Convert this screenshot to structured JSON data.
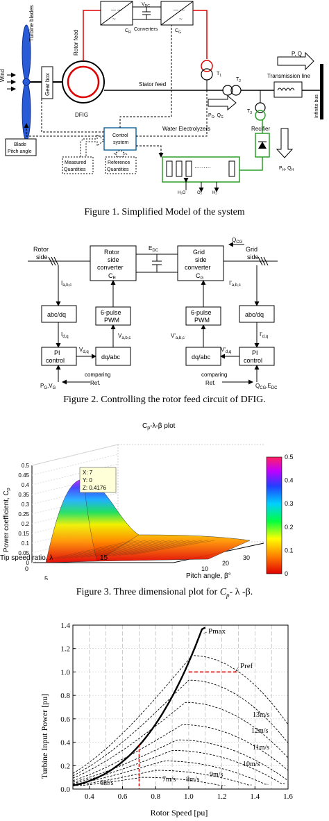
{
  "fig1": {
    "caption": "Figure 1.    Simplified Model of the system",
    "wind": "Wind",
    "turbine_blades": "Turbine blades",
    "gear_box": "Gear box",
    "rotor_feed": "Rotor feed",
    "dfig": "DFIG",
    "vdc": "V",
    "vdc_sub": "DC",
    "cr": "C",
    "cr_sub": "R",
    "converters": "Converters",
    "cg": "C",
    "cg_sub": "G",
    "t1": "T",
    "t1_sub": "1",
    "t2": "T",
    "t2_sub": "2",
    "t3": "T",
    "t3_sub": "3",
    "pq": "P, Q",
    "transmission_line": "Transmission line",
    "infinite_bus": "Infinite bus",
    "stator_feed": "Stator feed",
    "pg_qg": "P",
    "pg_qg_rest": "G",
    "qg_label": ", Q",
    "qg_sub": "G",
    "recifier": "Recifier",
    "ph": "P",
    "ph_sub": "H",
    "qh": ", Q",
    "qh_sub": "H",
    "blade_pitch": "Blade\nPitch angle",
    "control_system": "Control\nsystem",
    "water_electrolyzers": "Water Electrolyzers",
    "h2o": "H",
    "o2": "O",
    "h2": "H",
    "measured": "Measured\nQuantities",
    "reference": "Reference\nQuantities"
  },
  "fig2": {
    "caption": "Figure 2.    Controlling the rotor feed circuit of DFIG.",
    "rotor_side": "Rotor\nside",
    "rotor_conv": "Rotor\nside\nconverter",
    "rotor_conv_c": "C",
    "rotor_conv_sub": "R",
    "edc": "E",
    "edc_sub": "DC",
    "grid_conv": "Grid\nside\nconverter",
    "grid_conv_c": "C",
    "grid_conv_sub": "G",
    "qcg": "Q",
    "qcg_sub": "CG",
    "grid_side": "Grid\nside",
    "iabc": "I",
    "iabc_sub": "a,b,c",
    "iabc2": "I'",
    "iabc2_sub": "a,b,c",
    "abcdq": "abc/dq",
    "pwm": "6-pulse\nPWM",
    "idq": "I",
    "idq_sub": "d,q",
    "vabc": "V",
    "vabc_sub": "a,b,c",
    "vabc2": "V'",
    "vabc2_sub": "a,b,c",
    "idq2": "I'",
    "idq2_sub": "d,q",
    "vdq": "V",
    "vdq_sub": "d,q",
    "vdq2": "V'",
    "vdq2_sub": "d,q",
    "pi": "PI\ncontrol",
    "dqabc": "dq/abc",
    "comparing": "comparing",
    "ref": "Ref.",
    "pg_vg": "P",
    "pg_vg_sub1": "G",
    "pg_vg_mid": ",V",
    "pg_vg_sub2": "G",
    "qcg_edc": "Q",
    "qcg_edc_sub1": "CG",
    "qcg_edc_mid": ",E",
    "qcg_edc_sub2": "DC"
  },
  "fig3": {
    "caption_pre": "Figure 3.    Three dimensional plot for ",
    "caption_cp": "C",
    "caption_cp_sub": "p",
    "caption_post": "- λ -β.",
    "title": "C",
    "title_sub": "p",
    "title_rest": "-λ-β plot",
    "zlabel": "Power coefficient, C",
    "zlabel_sub": "p",
    "xlabel": "Tip speed ratio, λ",
    "ylabel": "Pitch angle, β°",
    "datatip": [
      "X: 7",
      "Y: 0",
      "Z: 0.4176"
    ],
    "z_ticks": [
      "0",
      "0.05",
      "0.1",
      "0.15",
      "0.2",
      "0.25",
      "0.3",
      "0.35",
      "0.4",
      "0.45",
      "0.5"
    ],
    "lambda_ticks": [
      "0",
      "5",
      "10",
      "15"
    ],
    "beta_ticks": [
      "10",
      "20",
      "30"
    ],
    "colorbar_ticks": [
      "0",
      "0.1",
      "0.2",
      "0.3",
      "0.4",
      "0.5"
    ]
  },
  "chart_data": {
    "type": "line",
    "title": "",
    "xlabel": "Rotor Speed [pu]",
    "ylabel": "Turbine Input Power [pu]",
    "xlim": [
      0.3,
      1.6
    ],
    "ylim": [
      0,
      1.4
    ],
    "x_ticks": [
      "0.4",
      "0.6",
      "0.8",
      "1.0",
      "1.2",
      "1.4",
      "1.6"
    ],
    "y_ticks": [
      "0.0",
      "0.2",
      "0.4",
      "0.6",
      "0.8",
      "1.0",
      "1.2",
      "1.4"
    ],
    "series": [
      {
        "name": "6m/s",
        "peak_x": 0.72,
        "peak_y": 0.1
      },
      {
        "name": "7m/s",
        "peak_x": 0.8,
        "peak_y": 0.16
      },
      {
        "name": "8m/s",
        "peak_x": 0.85,
        "peak_y": 0.24
      },
      {
        "name": "9m/s",
        "peak_x": 0.9,
        "peak_y": 0.33
      },
      {
        "name": "10m/s",
        "peak_x": 0.93,
        "peak_y": 0.42
      },
      {
        "name": "11m/s",
        "peak_x": 0.96,
        "peak_y": 0.55
      },
      {
        "name": "12m/s",
        "peak_x": 0.98,
        "peak_y": 0.74
      },
      {
        "name": "13m/s",
        "peak_x": 1.0,
        "peak_y": 0.93
      },
      {
        "name": "",
        "peak_x": 1.02,
        "peak_y": 1.14
      }
    ],
    "pmax_label": "Pmax",
    "pref_label": "Pref",
    "pref_value": 1.0,
    "pref_speed": 1.0,
    "min_speed_marker": 0.7,
    "series_label_positions": [
      "6m/s",
      "7m/s",
      "8m/s",
      "9m/s",
      "10m/s",
      "11m/s",
      "12m/s",
      "13m/s"
    ]
  },
  "fig4": {
    "xlabel": "Rotor Speed [pu]",
    "ylabel": "Turbine Input Power [pu]"
  }
}
